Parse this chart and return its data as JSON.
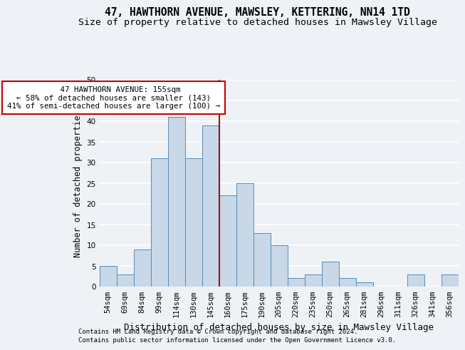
{
  "title": "47, HAWTHORN AVENUE, MAWSLEY, KETTERING, NN14 1TD",
  "subtitle": "Size of property relative to detached houses in Mawsley Village",
  "xlabel": "Distribution of detached houses by size in Mawsley Village",
  "ylabel": "Number of detached properties",
  "footer1": "Contains HM Land Registry data © Crown copyright and database right 2024.",
  "footer2": "Contains public sector information licensed under the Open Government Licence v3.0.",
  "bin_labels": [
    "54sqm",
    "69sqm",
    "84sqm",
    "99sqm",
    "114sqm",
    "130sqm",
    "145sqm",
    "160sqm",
    "175sqm",
    "190sqm",
    "205sqm",
    "220sqm",
    "235sqm",
    "250sqm",
    "265sqm",
    "281sqm",
    "296sqm",
    "311sqm",
    "326sqm",
    "341sqm",
    "356sqm"
  ],
  "bar_heights": [
    5,
    3,
    9,
    31,
    41,
    31,
    39,
    22,
    25,
    13,
    10,
    2,
    3,
    6,
    2,
    1,
    0,
    0,
    3,
    0,
    3
  ],
  "bar_color": "#c8d8e8",
  "bar_edge_color": "#5a8ab5",
  "vline_color": "#8b1a1a",
  "annotation_line1": "   47 HAWTHORN AVENUE: 155sqm",
  "annotation_line2": "← 58% of detached houses are smaller (143)",
  "annotation_line3": "41% of semi-detached houses are larger (100) →",
  "annotation_box_color": "#ffffff",
  "annotation_box_edge": "#cc0000",
  "ylim": [
    0,
    50
  ],
  "yticks": [
    0,
    5,
    10,
    15,
    20,
    25,
    30,
    35,
    40,
    45,
    50
  ],
  "background_color": "#eef2f7",
  "grid_color": "#ffffff",
  "title_fontsize": 10.5,
  "subtitle_fontsize": 9.5,
  "ylabel_fontsize": 8.5,
  "xlabel_fontsize": 9,
  "tick_fontsize": 7.5,
  "annotation_fontsize": 7.8,
  "footer_fontsize": 6.5
}
